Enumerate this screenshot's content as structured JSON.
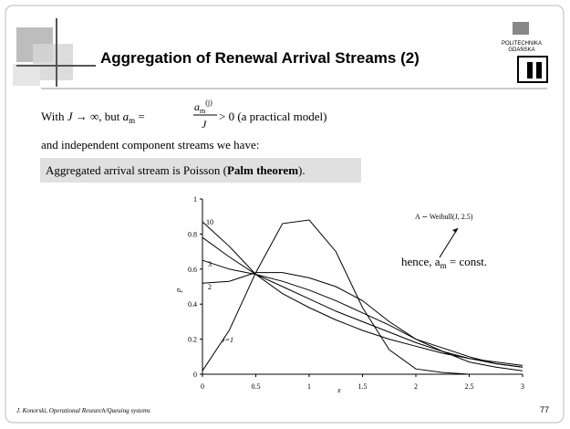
{
  "header": {
    "title": "Aggregation of Renewal Arrival Streams (2)",
    "logo_top": "POLITECHNIKA",
    "logo_bottom": "GDAŃSKA"
  },
  "body": {
    "line1": {
      "a": "With ",
      "J": "J",
      "b": " → ∞, but  ",
      "am": "a",
      "m": "m",
      "eq": " = ",
      "num_a": "a",
      "num_m": "m",
      "num_j": "(j)",
      "den": "J",
      "gt": " > 0  (a practical model)"
    },
    "line2": "and independent component streams we have:",
    "box": {
      "a": "Aggregated arrival stream is Poisson (",
      "bold": "Palm theorem",
      "b": ")."
    }
  },
  "chart_data": {
    "type": "line",
    "x_label": "x",
    "y_label": "p",
    "x": [
      0,
      0.25,
      0.5,
      0.75,
      1,
      1.25,
      1.5,
      1.75,
      2,
      2.25,
      2.5,
      2.75,
      3
    ],
    "series": [
      {
        "color": "#000000",
        "values": [
          0.02,
          0.25,
          0.58,
          0.86,
          0.88,
          0.7,
          0.38,
          0.14,
          0.03,
          0.01,
          0,
          0,
          0
        ]
      },
      {
        "color": "#000000",
        "values": [
          0.52,
          0.53,
          0.58,
          0.58,
          0.55,
          0.5,
          0.42,
          0.3,
          0.2,
          0.13,
          0.07,
          0.04,
          0.02
        ]
      },
      {
        "color": "#000000",
        "values": [
          0.65,
          0.6,
          0.57,
          0.53,
          0.48,
          0.42,
          0.35,
          0.28,
          0.2,
          0.15,
          0.1,
          0.06,
          0.04
        ]
      },
      {
        "color": "#000000",
        "values": [
          0.78,
          0.67,
          0.57,
          0.5,
          0.43,
          0.36,
          0.3,
          0.24,
          0.18,
          0.13,
          0.09,
          0.06,
          0.04
        ]
      },
      {
        "color": "#000000",
        "values": [
          0.87,
          0.73,
          0.57,
          0.46,
          0.38,
          0.31,
          0.25,
          0.2,
          0.16,
          0.12,
          0.09,
          0.07,
          0.05
        ]
      }
    ],
    "xlim": [
      0,
      3
    ],
    "xticks": [
      0,
      0.5,
      1,
      1.5,
      2,
      2.5,
      3
    ],
    "ylim": [
      0,
      1
    ],
    "yticks": [
      0,
      0.2,
      0.4,
      0.6,
      0.8,
      1
    ],
    "curve_labels": [
      "10",
      "3",
      "2",
      "J=1"
    ],
    "weibull_note": "A ∼ Weibull(J, 2.5)",
    "hence": {
      "a": "hence, a",
      "m": "m",
      "b": " = const."
    }
  },
  "footer": {
    "author": "J. Konorski, Operational Research/Queuing systems",
    "page": "77"
  }
}
